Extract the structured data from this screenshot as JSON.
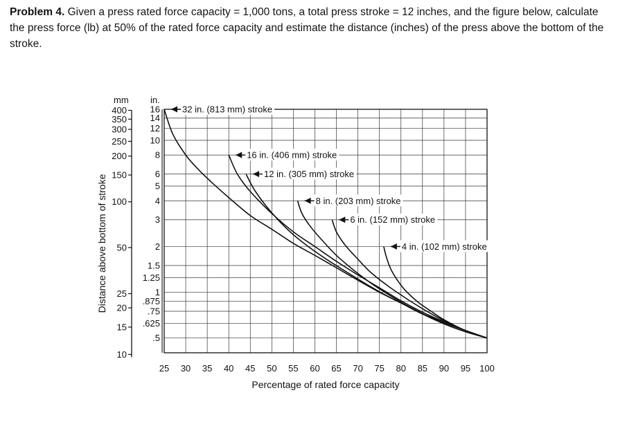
{
  "problem": {
    "heading": "Problem 4.",
    "body": "Given a press rated force capacity = 1,000 tons, a total press stroke = 12 inches, and the figure below, calculate the press force (lb) at 50% of the rated force capacity and estimate the distance (inches) of the press above the bottom of the stroke."
  },
  "chart_data": {
    "type": "line",
    "title": "",
    "xlabel": "Percentage of rated force capacity",
    "ylabel": "Distance above bottom of stroke",
    "x_scale": "linear",
    "y_scale": "log",
    "xlim": [
      25,
      100
    ],
    "ylim_in": [
      0.4,
      16
    ],
    "x_ticks": [
      25,
      30,
      35,
      40,
      45,
      50,
      55,
      60,
      65,
      70,
      75,
      80,
      85,
      90,
      95,
      100
    ],
    "y_unit_mm": "mm",
    "y_unit_in": "in.",
    "y_ticks_mm": [
      {
        "label": "400",
        "in": 15.75
      },
      {
        "label": "350",
        "in": 13.78
      },
      {
        "label": "300",
        "in": 11.81
      },
      {
        "label": "250",
        "in": 9.84
      },
      {
        "label": "200",
        "in": 7.87
      },
      {
        "label": "150",
        "in": 5.91
      },
      {
        "label": "100",
        "in": 3.94
      },
      {
        "label": "50",
        "in": 1.97
      },
      {
        "label": "25",
        "in": 0.98
      },
      {
        "label": "20",
        "in": 0.79
      },
      {
        "label": "15",
        "in": 0.59
      },
      {
        "label": "10",
        "in": 0.39
      }
    ],
    "y_ticks_in": [
      {
        "label": "16",
        "in": 16
      },
      {
        "label": "14",
        "in": 14
      },
      {
        "label": "12",
        "in": 12
      },
      {
        "label": "10",
        "in": 10
      },
      {
        "label": "8",
        "in": 8
      },
      {
        "label": "6",
        "in": 6
      },
      {
        "label": "5",
        "in": 5
      },
      {
        "label": "4",
        "in": 4
      },
      {
        "label": "3",
        "in": 3
      },
      {
        "label": "2",
        "in": 2
      },
      {
        "label": "1.5",
        "in": 1.5
      },
      {
        "label": "1.25",
        "in": 1.25
      },
      {
        "label": "1",
        "in": 1
      },
      {
        "label": ".875",
        "in": 0.875
      },
      {
        "label": ".75",
        "in": 0.75
      },
      {
        "label": ".625",
        "in": 0.625
      },
      {
        "label": ".5",
        "in": 0.5
      }
    ],
    "grid": true,
    "series": [
      {
        "name": "32 in. (813 mm) stroke",
        "x": [
          25,
          27,
          30,
          33,
          36,
          40,
          45,
          50,
          55,
          60,
          65,
          70,
          75,
          80,
          85,
          90,
          95,
          100
        ],
        "y": [
          16,
          11,
          8,
          6.4,
          5.3,
          4.2,
          3.2,
          2.6,
          2.1,
          1.75,
          1.45,
          1.2,
          1.0,
          0.85,
          0.72,
          0.64,
          0.56,
          0.5
        ]
      },
      {
        "name": "16 in. (406 mm) stroke",
        "x": [
          40,
          42,
          45,
          50,
          55,
          60,
          65,
          70,
          75,
          80,
          85,
          90,
          95,
          100
        ],
        "y": [
          8,
          6.0,
          4.6,
          3.3,
          2.5,
          2.0,
          1.6,
          1.3,
          1.07,
          0.88,
          0.74,
          0.64,
          0.56,
          0.5
        ]
      },
      {
        "name": "12 in. (305 mm) stroke",
        "x": [
          44,
          46,
          49,
          53,
          57,
          62,
          67,
          72,
          77,
          82,
          87,
          92,
          100
        ],
        "y": [
          6,
          4.7,
          3.6,
          2.7,
          2.15,
          1.7,
          1.38,
          1.13,
          0.94,
          0.8,
          0.68,
          0.6,
          0.5
        ]
      },
      {
        "name": "8 in. (203 mm) stroke",
        "x": [
          56,
          57,
          59,
          62,
          65,
          69,
          73,
          77,
          81,
          85,
          90,
          95,
          100
        ],
        "y": [
          4,
          3.3,
          2.7,
          2.15,
          1.75,
          1.4,
          1.15,
          0.97,
          0.83,
          0.72,
          0.62,
          0.55,
          0.5
        ]
      },
      {
        "name": "6 in. (152 mm) stroke",
        "x": [
          64,
          65,
          67,
          70,
          73,
          77,
          81,
          85,
          90,
          95,
          100
        ],
        "y": [
          3,
          2.5,
          2.05,
          1.65,
          1.35,
          1.1,
          0.92,
          0.78,
          0.65,
          0.56,
          0.5
        ]
      },
      {
        "name": "4 in. (102 mm) stroke",
        "x": [
          76,
          76.5,
          77.5,
          79,
          81,
          84,
          87,
          90,
          95,
          100
        ],
        "y": [
          2,
          1.75,
          1.45,
          1.22,
          1.03,
          0.86,
          0.75,
          0.66,
          0.56,
          0.5
        ]
      }
    ]
  }
}
